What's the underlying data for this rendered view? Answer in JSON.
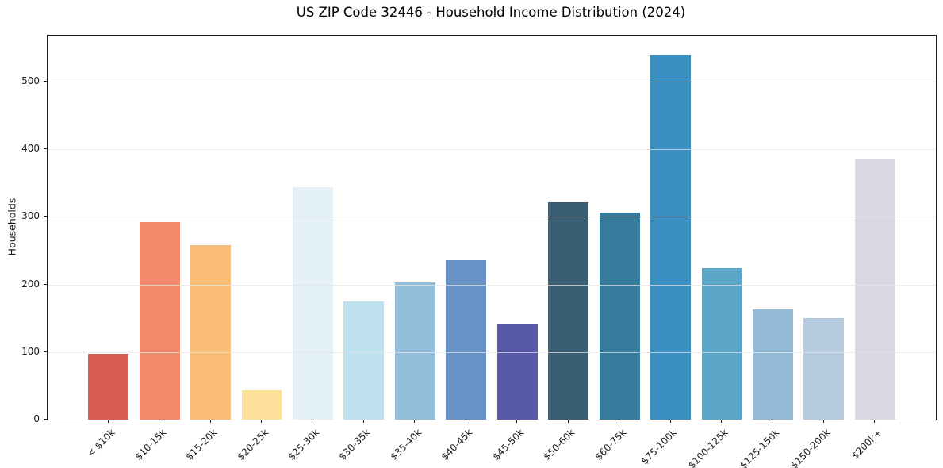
{
  "figure": {
    "background": "#ffffff",
    "spine_color": "#1a1a1a",
    "gridline_color": "#e4e4e4",
    "text_color": "#1a1a1a"
  },
  "chart_data": {
    "type": "bar",
    "title": "US ZIP Code 32446 - Household Income Distribution (2024)",
    "xlabel": "",
    "ylabel": "Households",
    "categories": [
      "< $10k",
      "$10-15k",
      "$15-20k",
      "$20-25k",
      "$25-30k",
      "$30-35k",
      "$35-40k",
      "$40-45k",
      "$45-50k",
      "$50-60k",
      "$60-75k",
      "$75-100k",
      "$100-125k",
      "$125-150k",
      "$150-200k",
      "$200k+"
    ],
    "values": [
      98,
      292,
      258,
      44,
      344,
      175,
      203,
      236,
      142,
      322,
      306,
      540,
      224,
      163,
      150,
      386
    ],
    "bar_colors": [
      "#d85d53",
      "#f3896a",
      "#fabd77",
      "#fce09a",
      "#e4f1f6",
      "#bde1ee",
      "#92bedb",
      "#6892c6",
      "#5959aa",
      "#3a5e73",
      "#347b9c",
      "#3a8fc1",
      "#5ba6c9",
      "#93bbd8",
      "#b6cadf",
      "#d8d9e5"
    ],
    "yticks": [
      0,
      100,
      200,
      300,
      400,
      500
    ],
    "ylim": [
      0,
      568
    ],
    "xtick_rotation": 45,
    "grid": "horizontal",
    "grid_over_bars": true,
    "legend": "none"
  }
}
